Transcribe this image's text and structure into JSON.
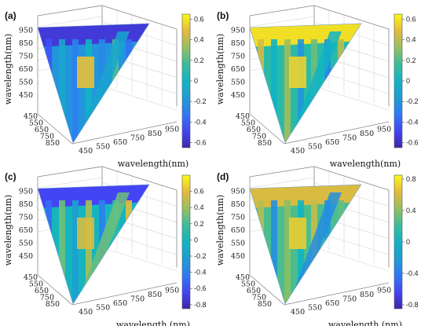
{
  "chart_data": [
    {
      "type": "heatmap",
      "panel_label": "(a)",
      "xlabel": "wavelength(nm)",
      "ylabel": "wavelength(nm)",
      "y_ticks": [
        "450",
        "550",
        "650",
        "750",
        "850",
        "950"
      ],
      "z_ticks": [
        "450",
        "550",
        "650",
        "750",
        "850"
      ],
      "x_ticks": [
        "450",
        "550",
        "650",
        "750",
        "850",
        "950"
      ],
      "colorbar_ticks": [
        "0.6",
        "0.4",
        "0.2",
        "0",
        "-0.2",
        "-0.4",
        "-0.6"
      ],
      "colorbar_values": [
        0.6,
        0.4,
        0.2,
        0,
        -0.2,
        -0.4,
        -0.6
      ],
      "clim": [
        -0.65,
        0.65
      ],
      "colormap": "parula",
      "surface": {
        "base": -0.2,
        "top_band_value": -0.55,
        "hotspot_value": 0.5,
        "stripe_values": [
          -0.45,
          -0.1,
          -0.3,
          0.0,
          -0.25,
          0.2,
          -0.35
        ]
      }
    },
    {
      "type": "heatmap",
      "panel_label": "(b)",
      "xlabel": "wavelength(nm)",
      "ylabel": "wavelength(nm)",
      "y_ticks": [
        "450",
        "550",
        "650",
        "750",
        "850",
        "950"
      ],
      "z_ticks": [
        "450",
        "550",
        "650",
        "750",
        "850"
      ],
      "x_ticks": [
        "450",
        "550",
        "650",
        "750",
        "850",
        "950"
      ],
      "colorbar_ticks": [
        "0.6",
        "0.4",
        "0.2",
        "0",
        "-0.2",
        "-0.4",
        "-0.6"
      ],
      "colorbar_values": [
        0.6,
        0.4,
        0.2,
        0,
        -0.2,
        -0.4,
        -0.6
      ],
      "clim": [
        -0.65,
        0.65
      ],
      "colormap": "parula",
      "surface": {
        "base": 0.1,
        "top_band_value": 0.58,
        "hotspot_value": 0.55,
        "stripe_values": [
          0.45,
          0.0,
          0.35,
          -0.2,
          0.25,
          -0.3,
          0.4
        ]
      }
    },
    {
      "type": "heatmap",
      "panel_label": "(c)",
      "xlabel": "wavelength  (nm)",
      "ylabel": "wavelength(nm)",
      "y_ticks": [
        "450",
        "550",
        "650",
        "750",
        "850",
        "950"
      ],
      "z_ticks": [
        "450",
        "550",
        "650",
        "750",
        "850"
      ],
      "x_ticks": [
        "450",
        "550",
        "650",
        "750",
        "850",
        "950"
      ],
      "colorbar_ticks": [
        "0.6",
        "0.4",
        "0.2",
        "0",
        "-0.2",
        "-0.4",
        "-0.6",
        "-0.8"
      ],
      "colorbar_values": [
        0.6,
        0.4,
        0.2,
        0,
        -0.2,
        -0.4,
        -0.6,
        -0.8
      ],
      "clim": [
        -0.85,
        0.8
      ],
      "colormap": "parula",
      "surface": {
        "base": 0.0,
        "top_band_value": -0.65,
        "hotspot_value": 0.55,
        "stripe_values": [
          -0.5,
          0.3,
          -0.2,
          0.45,
          -0.4,
          0.1,
          0.6
        ]
      }
    },
    {
      "type": "heatmap",
      "panel_label": "(d)",
      "xlabel": "wavelength  (nm)",
      "ylabel": "wavelength(nm)",
      "y_ticks": [
        "450",
        "550",
        "650",
        "750",
        "850",
        "950"
      ],
      "z_ticks": [
        "450",
        "550",
        "650",
        "750",
        "850"
      ],
      "x_ticks": [
        "450",
        "550",
        "650",
        "750",
        "850",
        "950"
      ],
      "colorbar_ticks": [
        "0.8",
        "0.4",
        "0",
        "-0.4",
        "-0.8"
      ],
      "colorbar_values": [
        0.8,
        0.4,
        0,
        -0.4,
        -0.8
      ],
      "clim": [
        -0.85,
        0.85
      ],
      "colormap": "parula",
      "surface": {
        "base": 0.25,
        "top_band_value": 0.6,
        "hotspot_value": 0.7,
        "stripe_values": [
          0.5,
          -0.3,
          0.4,
          0.0,
          0.55,
          -0.2,
          0.3
        ]
      }
    }
  ]
}
